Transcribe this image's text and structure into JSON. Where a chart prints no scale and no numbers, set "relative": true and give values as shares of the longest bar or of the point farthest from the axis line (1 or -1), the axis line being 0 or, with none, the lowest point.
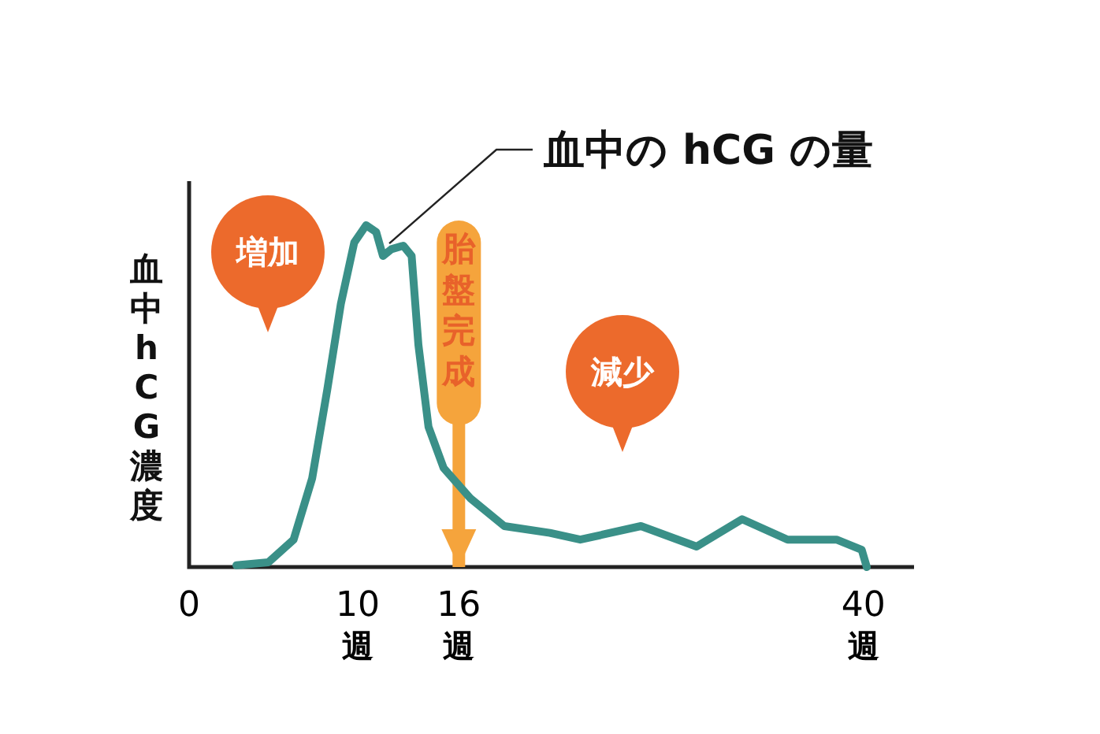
{
  "chart_data": {
    "type": "line",
    "relative": true,
    "ylabel": "血中hCG濃度",
    "xlim": [
      0,
      43
    ],
    "xticks": [
      0,
      {
        "value": 10,
        "label": "10週"
      },
      {
        "value": 16,
        "label": "16週"
      },
      {
        "value": 40,
        "label": "40週"
      }
    ],
    "series": [
      {
        "name": "血中の hCG の量",
        "color": "#3a9088",
        "x": [
          2.8,
          4.7,
          6.2,
          7.3,
          8.2,
          9.0,
          9.8,
          10.5,
          11.1,
          11.5,
          12.0,
          12.7,
          13.2,
          13.6,
          14.2,
          15.1,
          16.7,
          18.7,
          21.4,
          23.2,
          26.8,
          30.1,
          32.8,
          35.5,
          38.4,
          39.9,
          40.2
        ],
        "values": [
          0.005,
          0.014,
          0.08,
          0.26,
          0.52,
          0.77,
          0.95,
          1.0,
          0.98,
          0.91,
          0.93,
          0.94,
          0.91,
          0.65,
          0.41,
          0.29,
          0.2,
          0.12,
          0.1,
          0.08,
          0.12,
          0.06,
          0.14,
          0.08,
          0.08,
          0.05,
          0
        ]
      }
    ],
    "ref_lines": [
      {
        "axis": "x",
        "value": 16,
        "label": "胎盤完成",
        "color": "#f5a43c"
      }
    ],
    "annotations": [
      "増加",
      "減少"
    ]
  }
}
